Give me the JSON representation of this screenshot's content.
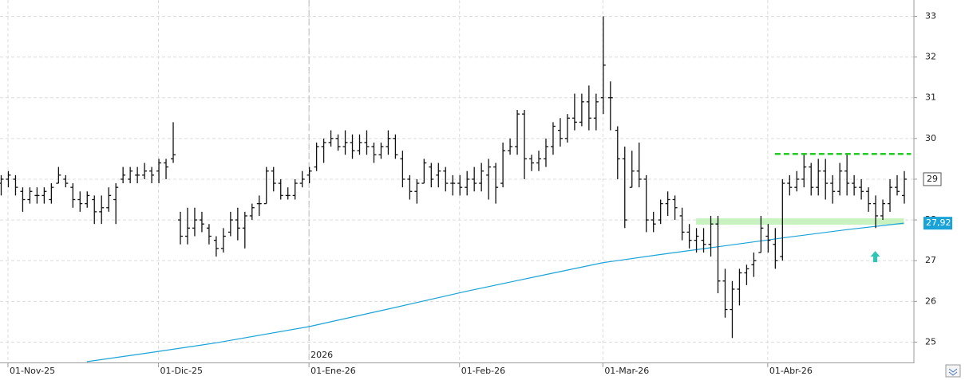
{
  "chart_data": {
    "type": "ohlc",
    "categories": [
      null,
      "01-Nov-25",
      null,
      null,
      null,
      null,
      null,
      null,
      null,
      null,
      null,
      null,
      null,
      null,
      null,
      null,
      null,
      null,
      null,
      null,
      null,
      null,
      "01-Dic-25",
      null,
      null,
      null,
      null,
      null,
      null,
      null,
      null,
      null,
      null,
      null,
      null,
      null,
      null,
      null,
      null,
      null,
      null,
      null,
      null,
      "01-Ene-26",
      null,
      null,
      null,
      null,
      null,
      null,
      null,
      null,
      null,
      null,
      null,
      null,
      null,
      null,
      null,
      null,
      null,
      null,
      null,
      null,
      "01-Feb-26",
      null,
      null,
      null,
      null,
      null,
      null,
      null,
      null,
      null,
      null,
      null,
      null,
      null,
      null,
      null,
      null,
      null,
      null,
      null,
      "01-Mar-26",
      null,
      null,
      null,
      null,
      null,
      null,
      null,
      null,
      null,
      null,
      null,
      null,
      null,
      null,
      null,
      null,
      null,
      null,
      null,
      null,
      null,
      null,
      "01-Abr-26",
      null,
      null,
      null,
      null,
      null,
      null,
      null,
      null,
      null,
      null,
      null,
      null,
      null,
      null,
      null,
      null,
      null,
      null,
      null
    ],
    "ohlc": [
      [
        28.9,
        29.1,
        28.6,
        29.0
      ],
      [
        29.0,
        29.2,
        28.8,
        29.1
      ],
      [
        29.0,
        29.1,
        28.6,
        28.8
      ],
      [
        28.7,
        28.8,
        28.2,
        28.5
      ],
      [
        28.5,
        28.8,
        28.4,
        28.7
      ],
      [
        28.6,
        28.8,
        28.4,
        28.6
      ],
      [
        28.6,
        28.8,
        28.4,
        28.7
      ],
      [
        28.5,
        28.9,
        28.4,
        28.8
      ],
      [
        28.9,
        29.3,
        28.9,
        29.1
      ],
      [
        29.0,
        29.1,
        28.8,
        28.9
      ],
      [
        28.8,
        28.9,
        28.3,
        28.5
      ],
      [
        28.5,
        28.7,
        28.2,
        28.4
      ],
      [
        28.4,
        28.7,
        28.3,
        28.6
      ],
      [
        28.5,
        28.6,
        27.9,
        28.2
      ],
      [
        28.2,
        28.6,
        27.9,
        28.3
      ],
      [
        28.3,
        28.8,
        28.2,
        28.6
      ],
      [
        28.5,
        28.9,
        27.9,
        28.8
      ],
      [
        29.0,
        29.3,
        28.9,
        29.1
      ],
      [
        29.0,
        29.3,
        28.9,
        29.2
      ],
      [
        29.1,
        29.3,
        28.9,
        29.1
      ],
      [
        29.1,
        29.4,
        29.0,
        29.2
      ],
      [
        29.2,
        29.3,
        28.9,
        29.1
      ],
      [
        29.2,
        29.5,
        28.9,
        29.4
      ],
      [
        29.4,
        29.5,
        29.0,
        29.3
      ],
      [
        29.5,
        30.4,
        29.4,
        29.6
      ],
      [
        28.0,
        28.2,
        27.4,
        27.6
      ],
      [
        27.6,
        28.3,
        27.4,
        27.8
      ],
      [
        27.8,
        28.3,
        27.6,
        28.0
      ],
      [
        28.0,
        28.2,
        27.7,
        27.9
      ],
      [
        27.8,
        27.9,
        27.4,
        27.6
      ],
      [
        27.5,
        27.6,
        27.1,
        27.3
      ],
      [
        27.3,
        27.8,
        27.2,
        27.6
      ],
      [
        27.7,
        28.2,
        27.6,
        28.0
      ],
      [
        28.0,
        28.3,
        27.5,
        27.8
      ],
      [
        27.8,
        28.2,
        27.3,
        28.1
      ],
      [
        28.1,
        28.4,
        28.0,
        28.3
      ],
      [
        28.4,
        28.6,
        28.1,
        28.4
      ],
      [
        28.4,
        29.3,
        28.4,
        29.2
      ],
      [
        29.2,
        29.3,
        28.7,
        28.9
      ],
      [
        28.9,
        29.0,
        28.5,
        28.6
      ],
      [
        28.6,
        28.8,
        28.5,
        28.6
      ],
      [
        28.6,
        29.0,
        28.5,
        28.9
      ],
      [
        28.9,
        29.2,
        28.8,
        29.0
      ],
      [
        29.1,
        29.3,
        28.9,
        29.2
      ],
      [
        29.3,
        29.9,
        29.2,
        29.8
      ],
      [
        29.8,
        30.0,
        29.4,
        29.9
      ],
      [
        29.9,
        30.2,
        29.8,
        30.0
      ],
      [
        30.0,
        30.1,
        29.7,
        29.8
      ],
      [
        29.8,
        30.2,
        29.6,
        29.9
      ],
      [
        29.9,
        30.1,
        29.5,
        29.7
      ],
      [
        29.7,
        30.1,
        29.6,
        29.9
      ],
      [
        29.9,
        30.2,
        29.6,
        29.8
      ],
      [
        29.8,
        29.9,
        29.4,
        29.6
      ],
      [
        29.6,
        29.9,
        29.5,
        29.8
      ],
      [
        29.8,
        30.2,
        29.6,
        30.0
      ],
      [
        30.0,
        30.1,
        29.5,
        29.6
      ],
      [
        29.5,
        29.7,
        28.8,
        29.0
      ],
      [
        29.0,
        29.1,
        28.5,
        28.7
      ],
      [
        28.7,
        29.0,
        28.4,
        28.9
      ],
      [
        28.9,
        29.5,
        28.9,
        29.4
      ],
      [
        29.3,
        29.4,
        28.8,
        29.0
      ],
      [
        29.1,
        29.4,
        28.8,
        29.2
      ],
      [
        29.2,
        29.3,
        28.7,
        28.9
      ],
      [
        28.9,
        29.1,
        28.6,
        28.9
      ],
      [
        28.9,
        29.1,
        28.6,
        28.8
      ],
      [
        28.8,
        29.2,
        28.6,
        29.0
      ],
      [
        29.0,
        29.3,
        28.7,
        28.9
      ],
      [
        28.9,
        29.4,
        28.7,
        29.2
      ],
      [
        29.1,
        29.5,
        28.5,
        29.3
      ],
      [
        29.3,
        29.4,
        28.4,
        28.8
      ],
      [
        28.9,
        29.9,
        28.8,
        29.7
      ],
      [
        29.7,
        30.0,
        29.6,
        29.8
      ],
      [
        29.8,
        30.7,
        29.6,
        30.6
      ],
      [
        30.6,
        30.7,
        29.0,
        29.5
      ],
      [
        29.5,
        29.6,
        29.2,
        29.4
      ],
      [
        29.4,
        29.7,
        29.2,
        29.5
      ],
      [
        29.5,
        30.0,
        29.3,
        29.8
      ],
      [
        29.8,
        30.4,
        29.6,
        30.3
      ],
      [
        30.2,
        30.5,
        29.8,
        30.0
      ],
      [
        30.0,
        30.6,
        29.9,
        30.5
      ],
      [
        30.5,
        31.1,
        30.2,
        30.4
      ],
      [
        30.4,
        31.1,
        30.3,
        30.9
      ],
      [
        30.9,
        31.3,
        30.2,
        30.5
      ],
      [
        30.5,
        31.1,
        30.2,
        30.9
      ],
      [
        31.0,
        33.0,
        30.6,
        31.8
      ],
      [
        31.0,
        31.4,
        30.2,
        31.0
      ],
      [
        30.2,
        30.3,
        29.0,
        29.5
      ],
      [
        29.5,
        29.8,
        27.8,
        28.0
      ],
      [
        28.8,
        29.7,
        28.8,
        29.2
      ],
      [
        29.2,
        29.9,
        28.8,
        29.0
      ],
      [
        29.0,
        29.1,
        27.7,
        28.0
      ],
      [
        28.0,
        28.2,
        27.7,
        27.9
      ],
      [
        28.0,
        28.5,
        27.9,
        28.4
      ],
      [
        28.4,
        28.7,
        28.1,
        28.5
      ],
      [
        28.5,
        28.6,
        28.0,
        28.3
      ],
      [
        28.1,
        28.3,
        27.5,
        27.7
      ],
      [
        27.7,
        27.9,
        27.3,
        27.5
      ],
      [
        27.5,
        27.8,
        27.2,
        27.6
      ],
      [
        27.5,
        27.8,
        27.2,
        27.4
      ],
      [
        27.4,
        28.1,
        27.1,
        27.9
      ],
      [
        27.9,
        28.1,
        26.2,
        26.5
      ],
      [
        26.5,
        26.8,
        25.6,
        25.8
      ],
      [
        25.8,
        26.5,
        25.1,
        26.3
      ],
      [
        26.3,
        26.8,
        25.9,
        26.7
      ],
      [
        26.7,
        26.9,
        26.4,
        26.8
      ],
      [
        26.9,
        27.2,
        26.6,
        27.0
      ],
      [
        27.2,
        28.1,
        27.2,
        27.8
      ],
      [
        27.6,
        27.9,
        27.2,
        27.5
      ],
      [
        27.4,
        27.8,
        26.8,
        27.0
      ],
      [
        27.1,
        29.0,
        27.0,
        28.9
      ],
      [
        28.9,
        29.1,
        28.6,
        28.8
      ],
      [
        28.8,
        29.2,
        28.7,
        29.0
      ],
      [
        29.0,
        29.6,
        28.8,
        29.3
      ],
      [
        29.3,
        29.4,
        28.6,
        28.8
      ],
      [
        28.8,
        29.5,
        28.6,
        29.2
      ],
      [
        29.2,
        29.5,
        28.5,
        28.9
      ],
      [
        28.9,
        29.1,
        28.4,
        28.7
      ],
      [
        28.7,
        29.4,
        28.6,
        29.2
      ],
      [
        29.2,
        29.6,
        28.6,
        28.9
      ],
      [
        28.9,
        29.1,
        28.6,
        28.8
      ],
      [
        28.8,
        29.0,
        28.5,
        28.7
      ],
      [
        28.7,
        28.8,
        28.2,
        28.4
      ],
      [
        28.4,
        28.6,
        27.8,
        28.1
      ],
      [
        28.1,
        28.5,
        28.0,
        28.4
      ],
      [
        28.4,
        29.0,
        28.2,
        28.8
      ],
      [
        28.8,
        29.1,
        28.6,
        28.7
      ],
      [
        28.6,
        29.2,
        28.4,
        29.0
      ]
    ],
    "moving_average": {
      "color": "#1aa3d9",
      "x": [
        12,
        20,
        30,
        43,
        55,
        65,
        75,
        84,
        92,
        100,
        110,
        118,
        126
      ],
      "values": [
        24.52,
        24.72,
        24.98,
        25.38,
        25.85,
        26.25,
        26.62,
        26.95,
        27.15,
        27.34,
        27.58,
        27.76,
        27.92
      ]
    },
    "ylim": [
      24.5,
      33.4
    ],
    "yticks": [
      25,
      26,
      27,
      28,
      29,
      30,
      31,
      32,
      33
    ],
    "grid": true,
    "year_label": "2026",
    "year_label_category": 43,
    "last_price": {
      "value": 29,
      "label": "29"
    },
    "ma_last": {
      "value": 27.92,
      "label": "27,92"
    },
    "resistance": {
      "value": 29.62,
      "from": 108,
      "to": 127,
      "color": "#22cc22"
    },
    "support": {
      "value": 27.96,
      "from": 97,
      "to": 126,
      "color": "#c8f2c0"
    },
    "arrow": {
      "value": 27.1,
      "x": 122,
      "color": "#2ec4b6"
    }
  }
}
